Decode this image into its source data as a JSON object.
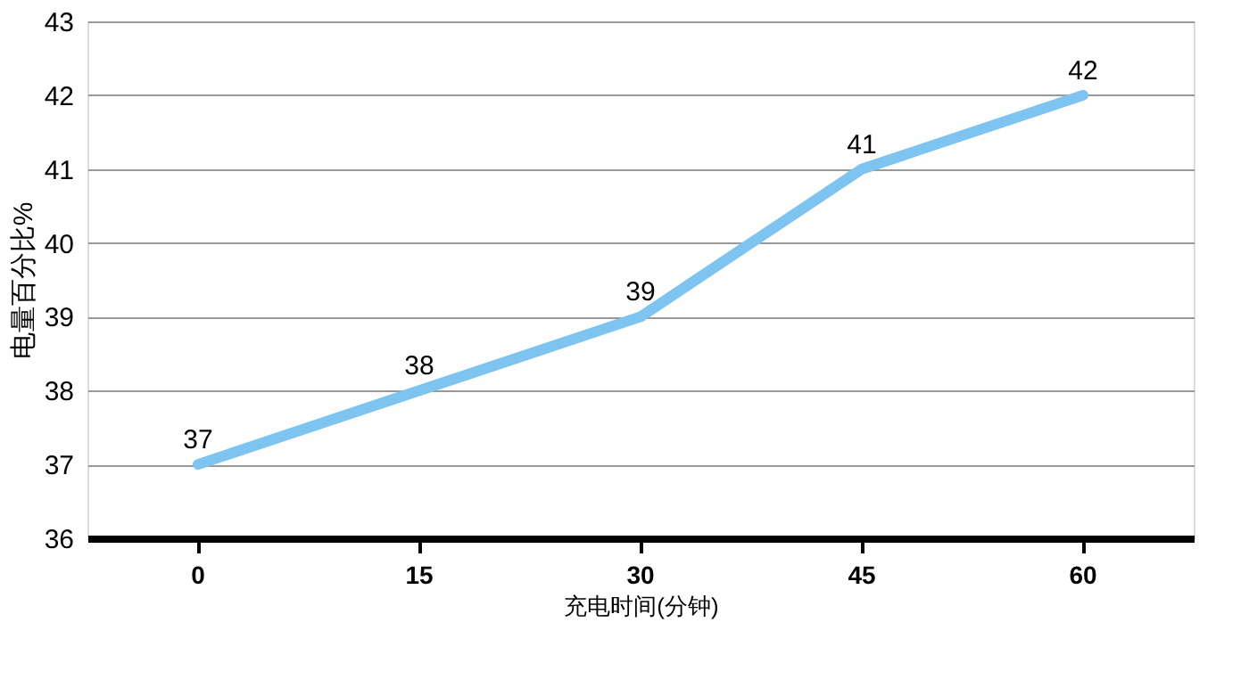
{
  "chart_data": {
    "type": "line",
    "categories": [
      "0",
      "15",
      "30",
      "45",
      "60"
    ],
    "series": [
      {
        "color": "#7ec4f0",
        "values": [
          37,
          38,
          39,
          41,
          42
        ]
      }
    ],
    "xlabel": "充电时间(分钟)",
    "ylabel": "电量百分比%",
    "ylim": [
      36,
      43
    ],
    "yticks": [
      36,
      37,
      38,
      39,
      40,
      41,
      42,
      43
    ],
    "grid": "y",
    "data_labels": true,
    "marker": "none",
    "line_style": "solid"
  }
}
